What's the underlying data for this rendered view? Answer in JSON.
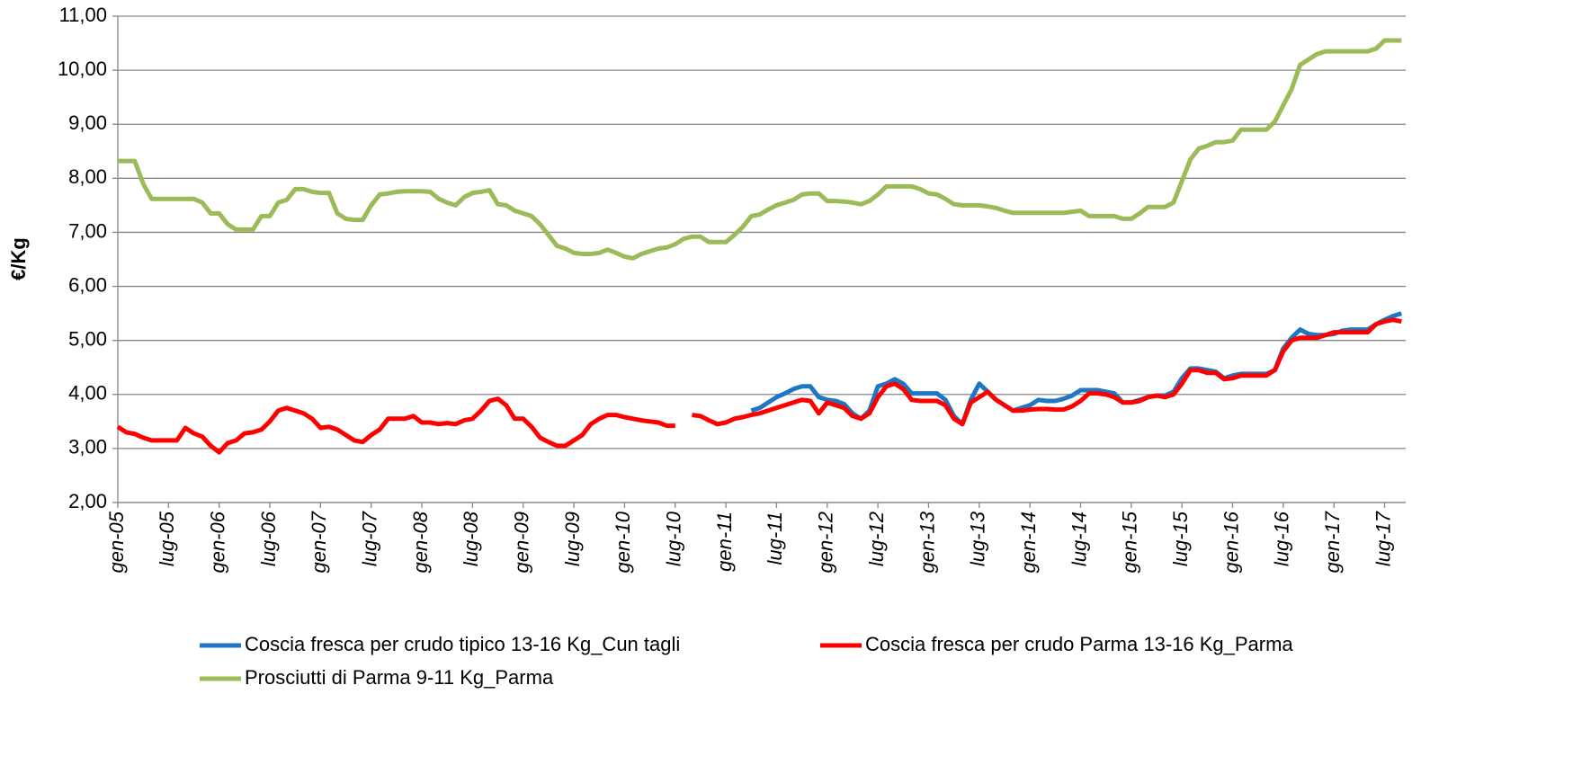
{
  "chart_data": {
    "type": "line",
    "ylabel": "€/Kg",
    "categories": [
      "gen-05",
      null,
      null,
      null,
      null,
      null,
      "lug-05",
      null,
      null,
      null,
      null,
      null,
      "gen-06",
      null,
      null,
      null,
      null,
      null,
      "lug-06",
      null,
      null,
      null,
      null,
      null,
      "gen-07",
      null,
      null,
      null,
      null,
      null,
      "lug-07",
      null,
      null,
      null,
      null,
      null,
      "gen-08",
      null,
      null,
      null,
      null,
      null,
      "lug-08",
      null,
      null,
      null,
      null,
      null,
      "gen-09",
      null,
      null,
      null,
      null,
      null,
      "lug-09",
      null,
      null,
      null,
      null,
      null,
      "gen-10",
      null,
      null,
      null,
      null,
      null,
      "lug-10",
      null,
      null,
      null,
      null,
      null,
      "gen-11",
      null,
      null,
      null,
      null,
      null,
      "lug-11",
      null,
      null,
      null,
      null,
      null,
      "gen-12",
      null,
      null,
      null,
      null,
      null,
      "lug-12",
      null,
      null,
      null,
      null,
      null,
      "gen-13",
      null,
      null,
      null,
      null,
      null,
      "lug-13",
      null,
      null,
      null,
      null,
      null,
      "gen-14",
      null,
      null,
      null,
      null,
      null,
      "lug-14",
      null,
      null,
      null,
      null,
      null,
      "gen-15",
      null,
      null,
      null,
      null,
      null,
      "lug-15",
      null,
      null,
      null,
      null,
      null,
      "gen-16",
      null,
      null,
      null,
      null,
      null,
      "lug-16",
      null,
      null,
      null,
      null,
      null,
      "gen-17",
      null,
      null,
      null,
      null,
      null,
      "lug-17",
      null,
      null
    ],
    "series": [
      {
        "name": "Coscia fresca per crudo tipico 13-16 Kg_Cun tagli",
        "color": "#1f77c4",
        "values": [
          null,
          null,
          null,
          null,
          null,
          null,
          null,
          null,
          null,
          null,
          null,
          null,
          null,
          null,
          null,
          null,
          null,
          null,
          null,
          null,
          null,
          null,
          null,
          null,
          null,
          null,
          null,
          null,
          null,
          null,
          null,
          null,
          null,
          null,
          null,
          null,
          null,
          null,
          null,
          null,
          null,
          null,
          null,
          null,
          null,
          null,
          null,
          null,
          null,
          null,
          null,
          null,
          null,
          null,
          null,
          null,
          null,
          null,
          null,
          null,
          null,
          null,
          null,
          null,
          null,
          null,
          null,
          null,
          null,
          null,
          null,
          null,
          null,
          null,
          null,
          3.7,
          3.75,
          3.85,
          3.95,
          4.02,
          4.1,
          4.15,
          4.15,
          3.95,
          3.9,
          3.88,
          3.82,
          3.65,
          3.55,
          3.7,
          4.15,
          4.2,
          4.28,
          4.2,
          4.02,
          4.02,
          4.02,
          4.02,
          3.9,
          3.6,
          3.45,
          3.9,
          4.2,
          4.05,
          3.9,
          3.8,
          3.7,
          3.75,
          3.8,
          3.9,
          3.88,
          3.88,
          3.92,
          3.98,
          4.08,
          4.08,
          4.08,
          4.05,
          4.02,
          3.85,
          3.85,
          3.9,
          3.95,
          3.98,
          3.98,
          4.05,
          4.3,
          4.48,
          4.48,
          4.45,
          4.42,
          4.3,
          4.35,
          4.38,
          4.38,
          4.38,
          4.38,
          4.45,
          4.85,
          5.05,
          5.2,
          5.12,
          5.1,
          5.1,
          5.12,
          5.18,
          5.2,
          5.2,
          5.2,
          5.3,
          5.38,
          5.45,
          5.5
        ]
      },
      {
        "name": "Coscia fresca per crudo Parma 13-16 Kg_Parma",
        "color": "#ff0000",
        "values": [
          3.4,
          3.3,
          3.27,
          3.2,
          3.15,
          3.15,
          3.15,
          3.15,
          3.38,
          3.28,
          3.22,
          3.05,
          2.93,
          3.1,
          3.15,
          3.28,
          3.3,
          3.35,
          3.5,
          3.7,
          3.75,
          3.7,
          3.65,
          3.55,
          3.38,
          3.4,
          3.35,
          3.25,
          3.15,
          3.12,
          3.25,
          3.35,
          3.55,
          3.55,
          3.55,
          3.6,
          3.48,
          3.48,
          3.45,
          3.47,
          3.45,
          3.52,
          3.55,
          3.7,
          3.88,
          3.92,
          3.8,
          3.55,
          3.55,
          3.4,
          3.2,
          3.12,
          3.05,
          3.05,
          3.15,
          3.25,
          3.45,
          3.55,
          3.62,
          3.62,
          3.58,
          3.55,
          3.52,
          3.5,
          3.48,
          3.42,
          3.42,
          null,
          3.62,
          3.6,
          3.52,
          3.45,
          3.48,
          3.55,
          3.58,
          3.62,
          3.65,
          3.7,
          3.75,
          3.8,
          3.85,
          3.9,
          3.88,
          3.65,
          3.85,
          3.8,
          3.75,
          3.6,
          3.55,
          3.65,
          3.95,
          4.15,
          4.2,
          4.1,
          3.9,
          3.88,
          3.88,
          3.88,
          3.8,
          3.55,
          3.45,
          3.85,
          3.95,
          4.05,
          3.9,
          3.8,
          3.7,
          3.7,
          3.72,
          3.73,
          3.73,
          3.72,
          3.72,
          3.78,
          3.88,
          4.02,
          4.02,
          4.0,
          3.95,
          3.85,
          3.85,
          3.88,
          3.95,
          3.98,
          3.95,
          4.0,
          4.2,
          4.45,
          4.45,
          4.4,
          4.4,
          4.28,
          4.3,
          4.35,
          4.35,
          4.35,
          4.35,
          4.45,
          4.8,
          5.0,
          5.05,
          5.05,
          5.05,
          5.1,
          5.15,
          5.15,
          5.15,
          5.15,
          5.15,
          5.3,
          5.35,
          5.38,
          5.35
        ]
      },
      {
        "name": "Prosciutti di Parma 9-11 Kg_Parma",
        "color": "#9bbb59",
        "values": [
          8.32,
          8.32,
          8.32,
          7.9,
          7.62,
          7.62,
          7.62,
          7.62,
          7.62,
          7.62,
          7.55,
          7.35,
          7.35,
          7.15,
          7.05,
          7.05,
          7.05,
          7.3,
          7.3,
          7.55,
          7.6,
          7.8,
          7.8,
          7.75,
          7.73,
          7.73,
          7.35,
          7.25,
          7.23,
          7.23,
          7.5,
          7.7,
          7.72,
          7.75,
          7.76,
          7.76,
          7.76,
          7.75,
          7.62,
          7.55,
          7.5,
          7.65,
          7.73,
          7.75,
          7.78,
          7.52,
          7.5,
          7.4,
          7.35,
          7.3,
          7.15,
          6.95,
          6.75,
          6.7,
          6.62,
          6.6,
          6.6,
          6.62,
          6.68,
          6.62,
          6.55,
          6.52,
          6.6,
          6.65,
          6.7,
          6.72,
          6.78,
          6.88,
          6.92,
          6.92,
          6.82,
          6.82,
          6.82,
          6.95,
          7.1,
          7.3,
          7.33,
          7.42,
          7.5,
          7.55,
          7.6,
          7.7,
          7.72,
          7.72,
          7.58,
          7.58,
          7.57,
          7.55,
          7.52,
          7.58,
          7.7,
          7.85,
          7.85,
          7.85,
          7.85,
          7.8,
          7.72,
          7.7,
          7.62,
          7.52,
          7.5,
          7.5,
          7.5,
          7.48,
          7.45,
          7.4,
          7.36,
          7.36,
          7.36,
          7.36,
          7.36,
          7.36,
          7.36,
          7.38,
          7.4,
          7.3,
          7.3,
          7.3,
          7.3,
          7.25,
          7.25,
          7.35,
          7.47,
          7.47,
          7.47,
          7.55,
          7.95,
          8.35,
          8.55,
          8.6,
          8.67,
          8.67,
          8.7,
          8.9,
          8.9,
          8.9,
          8.9,
          9.05,
          9.35,
          9.65,
          10.1,
          10.2,
          10.3,
          10.35,
          10.35,
          10.35,
          10.35,
          10.35,
          10.35,
          10.4,
          10.55,
          10.55,
          10.55
        ]
      }
    ],
    "ylim": [
      2,
      11
    ],
    "yticks": [
      {
        "value": 2,
        "label": "2,00"
      },
      {
        "value": 3,
        "label": "3,00"
      },
      {
        "value": 4,
        "label": "4,00"
      },
      {
        "value": 5,
        "label": "5,00"
      },
      {
        "value": 6,
        "label": "6,00"
      },
      {
        "value": 7,
        "label": "7,00"
      },
      {
        "value": 8,
        "label": "8,00"
      },
      {
        "value": 9,
        "label": "9,00"
      },
      {
        "value": 10,
        "label": "10,00"
      },
      {
        "value": 11,
        "label": "11,00"
      }
    ],
    "grid": true,
    "legend": "bottom"
  }
}
